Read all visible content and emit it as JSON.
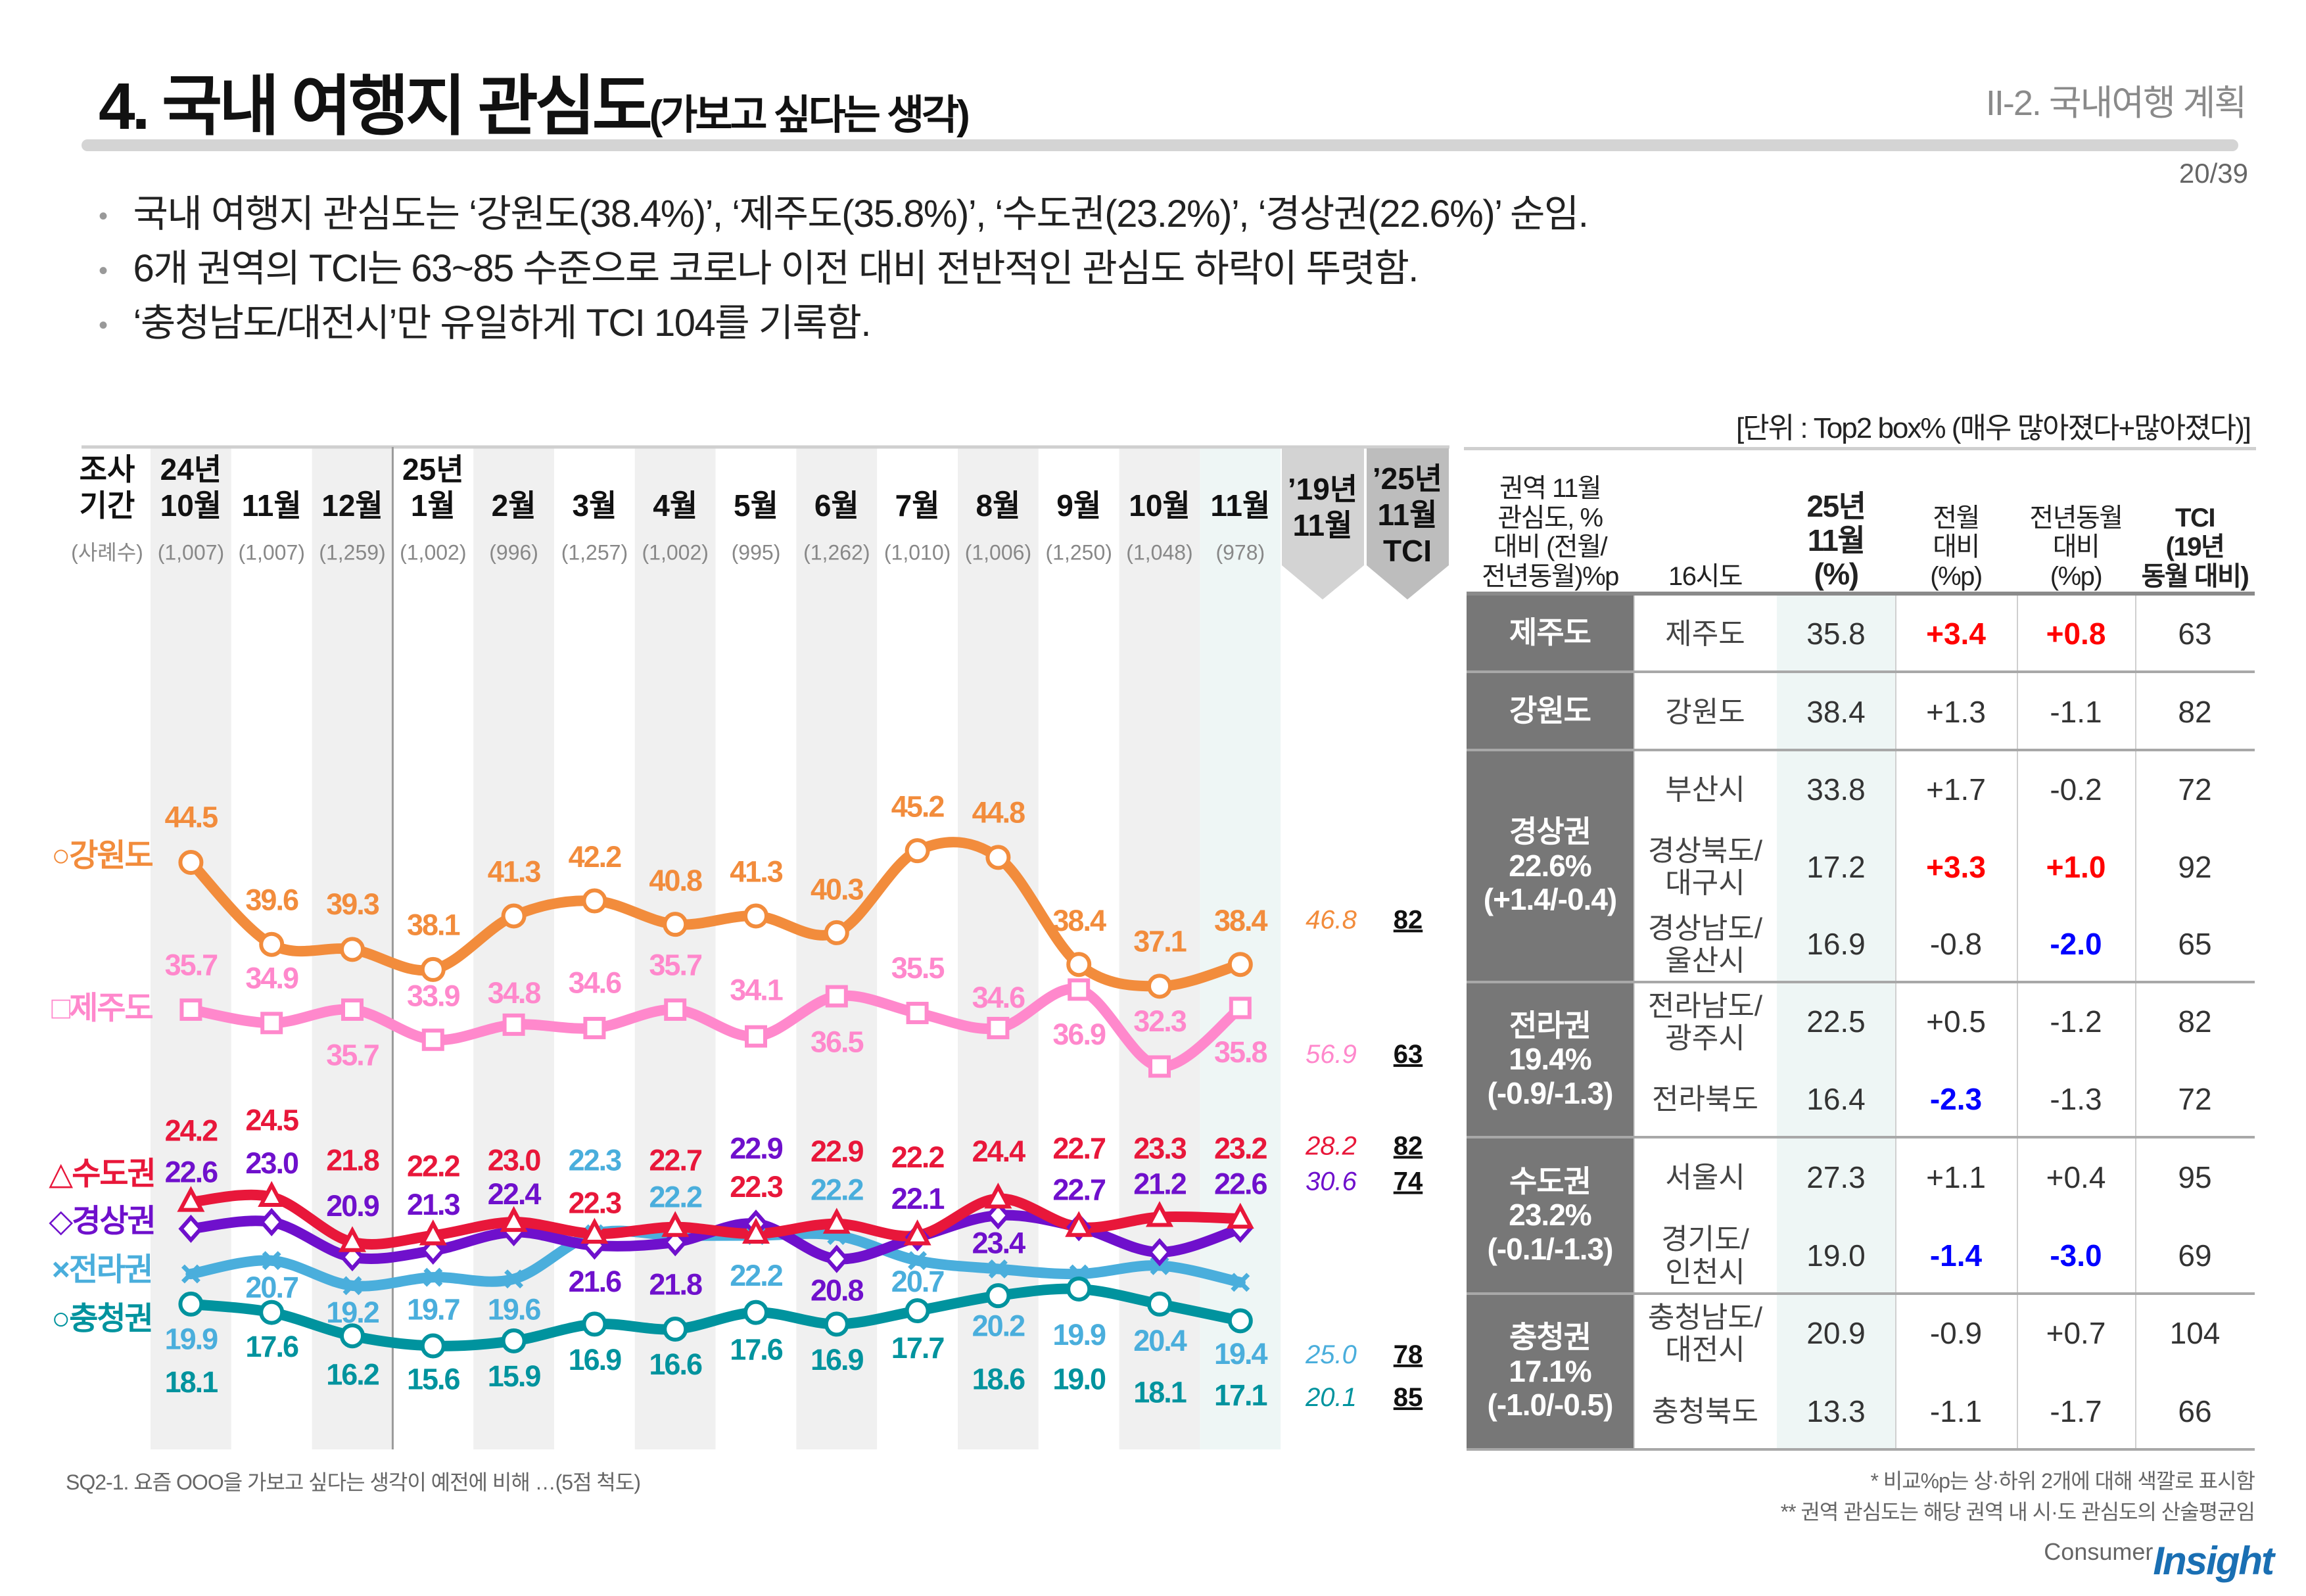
{
  "header": {
    "title_main": "4. 국내 여행지 관심도",
    "title_sub": "(가보고 싶다는 생각)",
    "section": "II-2. 국내여행 계획",
    "page": "20/39"
  },
  "bullets": [
    "국내 여행지 관심도는 ‘강원도(38.4%)’, ‘제주도(35.8%)’, ‘수도권(23.2%)’, ‘경상권(22.6%)’ 순임.",
    "6개 권역의 TCI는 63~85 수준으로 코로나 이전 대비 전반적인 관심도 하락이 뚜렷함.",
    "‘충청남도/대전시’만 유일하게 TCI 104를 기록함."
  ],
  "unit_note": "[단위 : Top2 box% (매우 많아졌다+많아졌다)]",
  "chart_data": {
    "type": "line",
    "row_label_top": "조사",
    "row_label_bottom": "기간",
    "sample_label": "(사례수)",
    "categories": [
      "10월",
      "11월",
      "12월",
      "1월",
      "2월",
      "3월",
      "4월",
      "5월",
      "6월",
      "7월",
      "8월",
      "9월",
      "10월",
      "11월"
    ],
    "year_labels": [
      "24년",
      "",
      "",
      "25년",
      "",
      "",
      "",
      "",
      "",
      "",
      "",
      "",
      "",
      ""
    ],
    "sample_sizes": [
      "(1,007)",
      "(1,007)",
      "(1,259)",
      "(1,002)",
      "(996)",
      "(1,257)",
      "(1,002)",
      "(995)",
      "(1,262)",
      "(1,010)",
      "(1,006)",
      "(1,250)",
      "(1,048)",
      "(978)"
    ],
    "ref_header": [
      "’19년",
      "11월"
    ],
    "tci_header": [
      "’25년",
      "11월",
      "TCI"
    ],
    "series": [
      {
        "name": "강원도",
        "marker": "○",
        "shape": "circle",
        "color": "#f28c3c",
        "values": [
          44.5,
          39.6,
          39.3,
          38.1,
          41.3,
          42.2,
          40.8,
          41.3,
          40.3,
          45.2,
          44.8,
          38.4,
          37.1,
          38.4
        ],
        "ref_2019": "46.8",
        "tci": "82"
      },
      {
        "name": "제주도",
        "marker": "□",
        "shape": "square",
        "color": "#ff88cc",
        "values": [
          35.7,
          34.9,
          35.7,
          33.9,
          34.8,
          34.6,
          35.7,
          34.1,
          36.5,
          35.5,
          34.6,
          36.9,
          32.3,
          35.8
        ],
        "ref_2019": "56.9",
        "tci": "63"
      },
      {
        "name": "수도권",
        "marker": "△",
        "shape": "triangle",
        "color": "#e8173a",
        "values": [
          24.2,
          24.5,
          21.8,
          22.2,
          23.0,
          22.3,
          22.7,
          22.3,
          22.9,
          22.2,
          24.4,
          22.7,
          23.3,
          23.2
        ],
        "ref_2019": "28.2",
        "tci": "82"
      },
      {
        "name": "경상권",
        "marker": "◇",
        "shape": "diamond",
        "color": "#6f10cc",
        "values": [
          22.6,
          23.0,
          20.9,
          21.3,
          22.4,
          21.6,
          21.8,
          22.9,
          20.8,
          22.1,
          23.4,
          22.7,
          21.2,
          22.6
        ],
        "ref_2019": "30.6",
        "tci": "74"
      },
      {
        "name": "전라권",
        "marker": "×",
        "shape": "x",
        "color": "#4aaedc",
        "values": [
          19.9,
          20.7,
          19.2,
          19.7,
          19.6,
          22.3,
          22.2,
          22.2,
          22.2,
          20.7,
          20.2,
          19.9,
          20.4,
          19.4
        ],
        "ref_2019": "25.0",
        "tci": "78"
      },
      {
        "name": "충청권",
        "marker": "○",
        "shape": "circle",
        "color": "#00939e",
        "values": [
          18.1,
          17.6,
          16.2,
          15.6,
          15.9,
          16.9,
          16.6,
          17.6,
          16.9,
          17.7,
          18.6,
          19.0,
          18.1,
          17.1
        ],
        "ref_2019": "20.1",
        "tci": "85"
      }
    ]
  },
  "table": {
    "headers": [
      "권역 11월\n관심도, %\n대비 (전월/\n전년동월)%p",
      "16시도",
      "25년\n11월\n(%)",
      "전월\n대비\n(%p)",
      "전년동월\n대비\n(%p)",
      "TCI\n(19년\n동월 대비)"
    ],
    "groups": [
      {
        "region": "제주도",
        "rows": [
          {
            "city": "제주도",
            "v": "35.8",
            "mom": {
              "v": "+3.4",
              "color": "#ff0000"
            },
            "yoy": {
              "v": "+0.8",
              "color": "#ff0000"
            },
            "tci": "63"
          }
        ]
      },
      {
        "region": "강원도",
        "rows": [
          {
            "city": "강원도",
            "v": "38.4",
            "mom": {
              "v": "+1.3"
            },
            "yoy": {
              "v": "-1.1"
            },
            "tci": "82"
          }
        ]
      },
      {
        "region": "경상권\n22.6%\n(+1.4/-0.4)",
        "rows": [
          {
            "city": "부산시",
            "v": "33.8",
            "mom": {
              "v": "+1.7"
            },
            "yoy": {
              "v": "-0.2"
            },
            "tci": "72"
          },
          {
            "city": "경상북도/\n대구시",
            "v": "17.2",
            "mom": {
              "v": "+3.3",
              "color": "#ff0000"
            },
            "yoy": {
              "v": "+1.0",
              "color": "#ff0000"
            },
            "tci": "92"
          },
          {
            "city": "경상남도/\n울산시",
            "v": "16.9",
            "mom": {
              "v": "-0.8"
            },
            "yoy": {
              "v": "-2.0",
              "color": "#0000ff"
            },
            "tci": "65"
          }
        ]
      },
      {
        "region": "전라권\n19.4%\n(-0.9/-1.3)",
        "rows": [
          {
            "city": "전라남도/\n광주시",
            "v": "22.5",
            "mom": {
              "v": "+0.5"
            },
            "yoy": {
              "v": "-1.2"
            },
            "tci": "82"
          },
          {
            "city": "전라북도",
            "v": "16.4",
            "mom": {
              "v": "-2.3",
              "color": "#0000ff"
            },
            "yoy": {
              "v": "-1.3"
            },
            "tci": "72"
          }
        ]
      },
      {
        "region": "수도권\n23.2%\n(-0.1/-1.3)",
        "rows": [
          {
            "city": "서울시",
            "v": "27.3",
            "mom": {
              "v": "+1.1"
            },
            "yoy": {
              "v": "+0.4"
            },
            "tci": "95"
          },
          {
            "city": "경기도/\n인천시",
            "v": "19.0",
            "mom": {
              "v": "-1.4",
              "color": "#0000ff"
            },
            "yoy": {
              "v": "-3.0",
              "color": "#0000ff"
            },
            "tci": "69"
          }
        ]
      },
      {
        "region": "충청권\n17.1%\n(-1.0/-0.5)",
        "rows": [
          {
            "city": "충청남도/\n대전시",
            "v": "20.9",
            "mom": {
              "v": "-0.9"
            },
            "yoy": {
              "v": "+0.7"
            },
            "tci": "104"
          },
          {
            "city": "충청북도",
            "v": "13.3",
            "mom": {
              "v": "-1.1"
            },
            "yoy": {
              "v": "-1.7"
            },
            "tci": "66"
          }
        ]
      }
    ]
  },
  "footnotes": {
    "question": "SQ2-1. 요즘 OOO을 가보고 싶다는 생각이 예전에 비해 …(5점 척도)",
    "note1": "* 비교%p는 상·하위 2개에 대해 색깔로 표시함",
    "note2": "** 권역 관심도는 해당 권역 내 시·도 관심도의 산술평균임"
  },
  "logo": {
    "small": "Consumer",
    "big": "Insight"
  }
}
